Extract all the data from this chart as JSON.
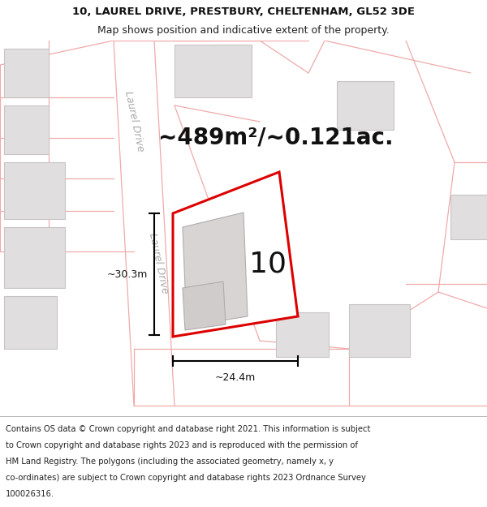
{
  "title_line1": "10, LAUREL DRIVE, PRESTBURY, CHELTENHAM, GL52 3DE",
  "title_line2": "Map shows position and indicative extent of the property.",
  "area_text": "~489m²/~0.121ac.",
  "property_number": "10",
  "dim_width": "~24.4m",
  "dim_height": "~30.3m",
  "road_label": "Laurel Drive",
  "map_bg": "#f8f8f8",
  "road_color": "#f0aaaa",
  "road_color2": "#e8c0c0",
  "property_fill": "#ffffff",
  "property_border": "#dd0000",
  "building_fill": "#e0dede",
  "building_border": "#c8c4c4",
  "title_fontsize": 9.5,
  "footer_fontsize": 7.2,
  "area_fontsize": 20,
  "number_fontsize": 26,
  "dim_fontsize": 9,
  "road_label_fontsize": 9,
  "footer_lines": [
    "Contains OS data © Crown copyright and database right 2021. This information is subject",
    "to Crown copyright and database rights 2023 and is reproduced with the permission of",
    "HM Land Registry. The polygons (including the associated geometry, namely x, y",
    "co-ordinates) are subject to Crown copyright and database rights 2023 Ordnance Survey",
    "100026316."
  ]
}
